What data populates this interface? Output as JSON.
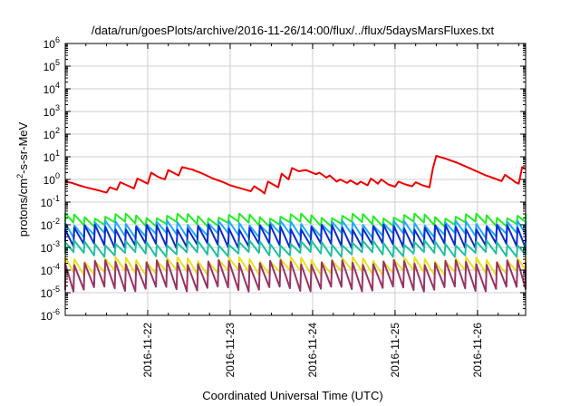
{
  "chart_data": {
    "type": "line",
    "title": "/data/run/goesPlots/archive/2016-11-26/14:00/flux/../flux/5daysMarsFluxes.txt",
    "xlabel": "Coordinated Universal Time (UTC)",
    "ylabel": {
      "base": "protons/cm",
      "sup": "2",
      "rest": "-s-sr-MeV"
    },
    "x_domain": [
      "2016-11-21T00:00",
      "2016-11-26T14:00"
    ],
    "x_ticks": [
      "2016-11-22",
      "2016-11-23",
      "2016-11-24",
      "2016-11-25",
      "2016-11-26"
    ],
    "y_scale": "log",
    "ylim": [
      1e-06,
      1000000.0
    ],
    "y_ticks": [
      {
        "base": "10",
        "exp": "-6"
      },
      {
        "base": "10",
        "exp": "-5"
      },
      {
        "base": "10",
        "exp": "-4"
      },
      {
        "base": "10",
        "exp": "-3"
      },
      {
        "base": "10",
        "exp": "-2"
      },
      {
        "base": "10",
        "exp": "-1"
      },
      {
        "base": "10",
        "exp": "0"
      },
      {
        "base": "10",
        "exp": "1"
      },
      {
        "base": "10",
        "exp": "2"
      },
      {
        "base": "10",
        "exp": "3"
      },
      {
        "base": "10",
        "exp": "4"
      },
      {
        "base": "10",
        "exp": "5"
      },
      {
        "base": "10",
        "exp": "6"
      }
    ],
    "grid": true,
    "series": [
      {
        "color": "#ee0000",
        "points": [
          [
            "2016-11-21T00:00",
            0.8
          ],
          [
            "2016-11-21T02:00",
            0.7
          ],
          [
            "2016-11-21T04:00",
            0.55
          ],
          [
            "2016-11-21T06:00",
            0.45
          ],
          [
            "2016-11-21T08:00",
            0.38
          ],
          [
            "2016-11-21T10:00",
            0.32
          ],
          [
            "2016-11-21T12:00",
            0.26
          ],
          [
            "2016-11-21T13:00",
            0.45
          ],
          [
            "2016-11-21T15:00",
            0.35
          ],
          [
            "2016-11-21T16:00",
            0.75
          ],
          [
            "2016-11-21T18:00",
            0.55
          ],
          [
            "2016-11-21T20:00",
            0.4
          ],
          [
            "2016-11-21T21:00",
            1.1
          ],
          [
            "2016-11-22T00:00",
            0.65
          ],
          [
            "2016-11-22T01:00",
            2.0
          ],
          [
            "2016-11-22T03:00",
            1.3
          ],
          [
            "2016-11-22T05:00",
            1.0
          ],
          [
            "2016-11-22T06:00",
            2.6
          ],
          [
            "2016-11-22T09:00",
            1.5
          ],
          [
            "2016-11-22T10:00",
            3.5
          ],
          [
            "2016-11-22T13:00",
            2.7
          ],
          [
            "2016-11-22T16:00",
            1.8
          ],
          [
            "2016-11-22T19:00",
            1.1
          ],
          [
            "2016-11-22T22:00",
            0.75
          ],
          [
            "2016-11-23T00:00",
            0.55
          ],
          [
            "2016-11-23T02:00",
            0.45
          ],
          [
            "2016-11-23T04:00",
            0.37
          ],
          [
            "2016-11-23T06:00",
            0.3
          ],
          [
            "2016-11-23T07:00",
            0.5
          ],
          [
            "2016-11-23T09:00",
            0.32
          ],
          [
            "2016-11-23T10:00",
            0.24
          ],
          [
            "2016-11-23T11:00",
            0.8
          ],
          [
            "2016-11-23T14:00",
            0.45
          ],
          [
            "2016-11-23T15:00",
            1.8
          ],
          [
            "2016-11-23T17:00",
            1.0
          ],
          [
            "2016-11-23T18:00",
            3.2
          ],
          [
            "2016-11-23T20:00",
            2.3
          ],
          [
            "2016-11-23T22:00",
            2.6
          ],
          [
            "2016-11-24T01:00",
            1.7
          ],
          [
            "2016-11-24T02:00",
            2.0
          ],
          [
            "2016-11-24T04:00",
            1.2
          ],
          [
            "2016-11-24T05:00",
            1.5
          ],
          [
            "2016-11-24T07:00",
            0.8
          ],
          [
            "2016-11-24T08:00",
            1.0
          ],
          [
            "2016-11-24T10:00",
            0.7
          ],
          [
            "2016-11-24T11:00",
            0.9
          ],
          [
            "2016-11-24T13:00",
            0.6
          ],
          [
            "2016-11-24T14:00",
            0.8
          ],
          [
            "2016-11-24T16:00",
            0.55
          ],
          [
            "2016-11-24T17:00",
            1.1
          ],
          [
            "2016-11-24T19:00",
            0.65
          ],
          [
            "2016-11-24T20:00",
            1.0
          ],
          [
            "2016-11-24T22:00",
            0.6
          ],
          [
            "2016-11-25T00:00",
            0.48
          ],
          [
            "2016-11-25T01:00",
            0.8
          ],
          [
            "2016-11-25T03:00",
            0.6
          ],
          [
            "2016-11-25T05:00",
            0.5
          ],
          [
            "2016-11-25T06:00",
            0.75
          ],
          [
            "2016-11-25T08:00",
            0.55
          ],
          [
            "2016-11-25T10:00",
            0.45
          ],
          [
            "2016-11-25T11:00",
            3.0
          ],
          [
            "2016-11-25T12:00",
            11.0
          ],
          [
            "2016-11-25T15:00",
            8.0
          ],
          [
            "2016-11-25T18:00",
            5.5
          ],
          [
            "2016-11-25T21:00",
            3.5
          ],
          [
            "2016-11-26T00:00",
            2.2
          ],
          [
            "2016-11-26T02:00",
            1.6
          ],
          [
            "2016-11-26T05:00",
            1.1
          ],
          [
            "2016-11-26T07:00",
            0.85
          ],
          [
            "2016-11-26T08:00",
            1.6
          ],
          [
            "2016-11-26T10:00",
            1.0
          ],
          [
            "2016-11-26T11:00",
            0.75
          ],
          [
            "2016-11-26T12:00",
            0.65
          ],
          [
            "2016-11-26T13:00",
            3.5
          ],
          [
            "2016-11-26T14:00",
            3.0
          ]
        ]
      },
      {
        "color": "#22ee22",
        "sawtooth": {
          "high": 0.025,
          "low": 0.011
        }
      },
      {
        "color": "#1eaaff",
        "sawtooth": {
          "high": 0.012,
          "low": 0.0035
        }
      },
      {
        "color": "#0a2ccc",
        "sawtooth": {
          "high": 0.008,
          "low": 0.0012
        }
      },
      {
        "color": "#20c0a0",
        "sawtooth": {
          "high": 0.0016,
          "low": 0.0005
        }
      },
      {
        "color": "#e8e020",
        "sawtooth": {
          "high": 0.0003,
          "low": 8e-05
        }
      },
      {
        "color": "#993366",
        "sawtooth": {
          "high": 0.00022,
          "low": 1.5e-05
        }
      }
    ]
  }
}
